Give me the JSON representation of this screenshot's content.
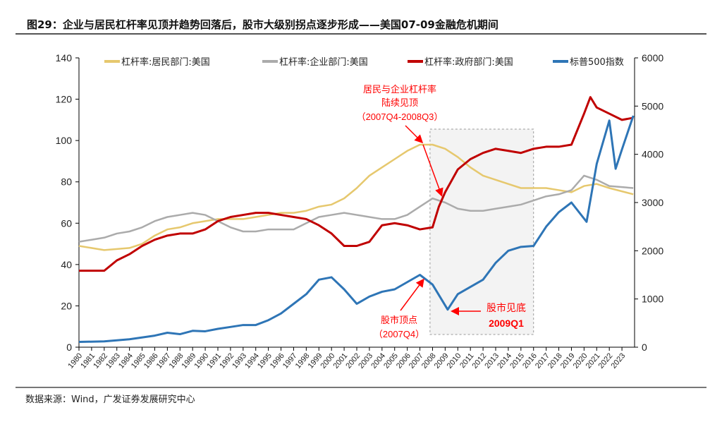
{
  "title": "图29：企业与居民杠杆率见顶并趋势回落后，股市大级别拐点逐步形成——美国07-09金融危机期间",
  "source": "数据来源：Wind，广发证券发展研究中心",
  "chart_data": {
    "type": "line",
    "xlabel": "",
    "ylabel": "",
    "ylim_left": [
      0,
      140
    ],
    "yticks_left": [
      0,
      20,
      40,
      60,
      80,
      100,
      120,
      140
    ],
    "ylim_right": [
      0,
      6000
    ],
    "yticks_right": [
      0,
      1000,
      2000,
      3000,
      4000,
      5000,
      6000
    ],
    "xlim": [
      1980,
      2024
    ],
    "xticks": [
      "1980",
      "1981",
      "1982",
      "1983",
      "1984",
      "1985",
      "1986",
      "1987",
      "1988",
      "1989",
      "1990",
      "1991",
      "1992",
      "1993",
      "1994",
      "1995",
      "1996",
      "1997",
      "1998",
      "1999",
      "2000",
      "2001",
      "2002",
      "2003",
      "2004",
      "2005",
      "2006",
      "2007",
      "2008",
      "2009",
      "2010",
      "2011",
      "2012",
      "2013",
      "2014",
      "2015",
      "2016",
      "2017",
      "2018",
      "2019",
      "2020",
      "2021",
      "2022",
      "2023"
    ],
    "legend": "top",
    "series": [
      {
        "name": "杠杆率:居民部门:美国",
        "color": "#E6C86E",
        "axis": "left",
        "x": [
          1980,
          1982,
          1984,
          1985,
          1986,
          1987,
          1988,
          1989,
          1990,
          1991,
          1992,
          1993,
          1994,
          1995,
          1996,
          1997,
          1998,
          1999,
          2000,
          2001,
          2002,
          2003,
          2004,
          2005,
          2006,
          2007,
          2008,
          2009,
          2010,
          2011,
          2012,
          2013,
          2014,
          2015,
          2016,
          2017,
          2018,
          2019,
          2020,
          2021,
          2022,
          2023.9
        ],
        "y": [
          49,
          47,
          48,
          50,
          54,
          57,
          58,
          60,
          61,
          62,
          62,
          62,
          63,
          64,
          65,
          65,
          66,
          68,
          69,
          72,
          77,
          83,
          87,
          91,
          95,
          98,
          98,
          96,
          92,
          87,
          83,
          81,
          79,
          77,
          77,
          77,
          76,
          75,
          78,
          79,
          77,
          74
        ]
      },
      {
        "name": "杠杆率:企业部门:美国",
        "color": "#ABABAB",
        "axis": "left",
        "x": [
          1980,
          1981,
          1982,
          1983,
          1984,
          1985,
          1986,
          1987,
          1988,
          1989,
          1990,
          1991,
          1992,
          1993,
          1994,
          1995,
          1996,
          1997,
          1998,
          1999,
          2000,
          2001,
          2002,
          2003,
          2004,
          2005,
          2006,
          2007,
          2008,
          2009,
          2010,
          2011,
          2012,
          2013,
          2014,
          2015,
          2016,
          2017,
          2018,
          2019,
          2020,
          2021,
          2022,
          2023.9
        ],
        "y": [
          51,
          52,
          53,
          55,
          56,
          58,
          61,
          63,
          64,
          65,
          64,
          61,
          58,
          56,
          56,
          57,
          57,
          57,
          60,
          63,
          64,
          65,
          64,
          63,
          62,
          62,
          64,
          68,
          72,
          70,
          67,
          66,
          66,
          67,
          68,
          69,
          71,
          73,
          74,
          76,
          83,
          81,
          78,
          77
        ]
      },
      {
        "name": "杠杆率:政府部门:美国",
        "color": "#C00000",
        "axis": "left",
        "x": [
          1980,
          1981,
          1982,
          1983,
          1984,
          1985,
          1986,
          1987,
          1988,
          1989,
          1990,
          1991,
          1992,
          1993,
          1994,
          1995,
          1996,
          1997,
          1998,
          1999,
          2000,
          2001,
          2002,
          2003,
          2004,
          2005,
          2006,
          2007,
          2008,
          2008.5,
          2009,
          2010,
          2011,
          2012,
          2013,
          2014,
          2015,
          2016,
          2017,
          2018,
          2019,
          2020,
          2020.5,
          2021,
          2022,
          2023,
          2023.9
        ],
        "y": [
          37,
          37,
          37,
          42,
          45,
          49,
          52,
          54,
          55,
          55,
          57,
          61,
          63,
          64,
          65,
          65,
          64,
          63,
          62,
          59,
          55,
          49,
          49,
          51,
          59,
          60,
          59,
          57,
          58,
          68,
          75,
          86,
          91,
          94,
          96,
          95,
          94,
          96,
          97,
          97,
          98,
          113,
          121,
          116,
          113,
          110,
          111
        ]
      },
      {
        "name": "标普500指数",
        "color": "#2E75B6",
        "axis": "right",
        "x": [
          1980,
          1982,
          1984,
          1986,
          1987,
          1988,
          1989,
          1990,
          1991,
          1992,
          1993,
          1994,
          1995,
          1996,
          1997,
          1998,
          1999,
          2000,
          2001,
          2002,
          2003,
          2004,
          2005,
          2006,
          2007,
          2008,
          2009.2,
          2010,
          2011,
          2012,
          2013,
          2014,
          2015,
          2016,
          2017,
          2018,
          2019,
          2020.2,
          2021,
          2022,
          2022.5,
          2023,
          2023.9
        ],
        "y": [
          110,
          120,
          165,
          240,
          300,
          270,
          340,
          330,
          380,
          420,
          460,
          460,
          560,
          700,
          900,
          1100,
          1400,
          1450,
          1200,
          900,
          1050,
          1150,
          1200,
          1350,
          1500,
          1300,
          780,
          1100,
          1250,
          1400,
          1750,
          2000,
          2080,
          2100,
          2500,
          2800,
          3000,
          2600,
          3800,
          4700,
          3700,
          4100,
          4800
        ]
      }
    ],
    "annotations": [
      {
        "text": "居民与企业杠杆率",
        "color": "#FF0000"
      },
      {
        "text": "陆续见顶",
        "color": "#FF0000"
      },
      {
        "text": "（2007Q4-2008Q3）",
        "color": "#FF0000"
      },
      {
        "text": "股市顶点",
        "color": "#FF0000"
      },
      {
        "text": "（2007Q4）",
        "color": "#FF0000"
      },
      {
        "text": "股市见底",
        "color": "#FF0000"
      },
      {
        "text": "2009Q1",
        "color": "#FF0000"
      }
    ],
    "shaded_period": [
      "2007Q4",
      "2016"
    ]
  }
}
